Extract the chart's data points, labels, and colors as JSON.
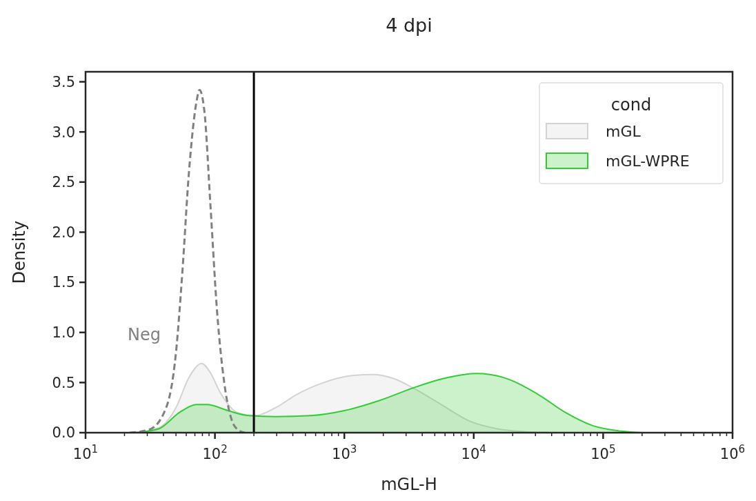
{
  "chart_data": {
    "type": "area",
    "title": "4 dpi",
    "xlabel": "mGL-H",
    "ylabel": "Density",
    "legend_title": "cond",
    "legend": "top right",
    "log": "x",
    "line_style": "solid",
    "xlim": [
      10,
      1000000
    ],
    "ylim": [
      0,
      3.6
    ],
    "xticks": [
      {
        "value": 10,
        "label": "10$^{1}$"
      },
      {
        "value": 20,
        "label": null
      },
      {
        "value": 30,
        "label": null
      },
      {
        "value": 40,
        "label": null
      },
      {
        "value": 50,
        "label": null
      },
      {
        "value": 60,
        "label": null
      },
      {
        "value": 70,
        "label": null
      },
      {
        "value": 80,
        "label": null
      },
      {
        "value": 90,
        "label": null
      },
      {
        "value": 100,
        "label": "10$^{2}$"
      },
      {
        "value": 200,
        "label": null
      },
      {
        "value": 300,
        "label": null
      },
      {
        "value": 400,
        "label": null
      },
      {
        "value": 500,
        "label": null
      },
      {
        "value": 600,
        "label": null
      },
      {
        "value": 700,
        "label": null
      },
      {
        "value": 800,
        "label": null
      },
      {
        "value": 900,
        "label": null
      },
      {
        "value": 1000,
        "label": "10$^{3}$"
      },
      {
        "value": 2000,
        "label": null
      },
      {
        "value": 3000,
        "label": null
      },
      {
        "value": 4000,
        "label": null
      },
      {
        "value": 5000,
        "label": null
      },
      {
        "value": 6000,
        "label": null
      },
      {
        "value": 7000,
        "label": null
      },
      {
        "value": 8000,
        "label": null
      },
      {
        "value": 9000,
        "label": null
      },
      {
        "value": 10000,
        "label": "10$^{4}$"
      },
      {
        "value": 20000,
        "label": null
      },
      {
        "value": 30000,
        "label": null
      },
      {
        "value": 40000,
        "label": null
      },
      {
        "value": 50000,
        "label": null
      },
      {
        "value": 60000,
        "label": null
      },
      {
        "value": 70000,
        "label": null
      },
      {
        "value": 80000,
        "label": null
      },
      {
        "value": 90000,
        "label": null
      },
      {
        "value": 100000,
        "label": "10$^{5}$"
      },
      {
        "value": 200000,
        "label": null
      },
      {
        "value": 300000,
        "label": null
      },
      {
        "value": 400000,
        "label": null
      },
      {
        "value": 500000,
        "label": null
      },
      {
        "value": 600000,
        "label": null
      },
      {
        "value": 700000,
        "label": null
      },
      {
        "value": 800000,
        "label": null
      },
      {
        "value": 900000,
        "label": null
      },
      {
        "value": 1000000,
        "label": "10$^{6}$"
      }
    ],
    "yticks": [
      {
        "value": 0,
        "label": "0.0"
      },
      {
        "value": 0.5,
        "label": "0.5"
      },
      {
        "value": 1,
        "label": "1.0"
      },
      {
        "value": 1.5,
        "label": "1.5"
      },
      {
        "value": 2,
        "label": "2.0"
      },
      {
        "value": 2.5,
        "label": "2.5"
      },
      {
        "value": 3,
        "label": "3.0"
      },
      {
        "value": 3.5,
        "label": "3.5"
      }
    ],
    "ref_lines": [
      {
        "axis": "x",
        "value": 200,
        "color": "#000000"
      }
    ],
    "series": [
      {
        "name": "mGL",
        "color": "#d3d3d3",
        "x": [
          24,
          37,
          50,
          63,
          79,
          92,
          110,
          150,
          205,
          295,
          427,
          692,
          1150,
          1660,
          2400,
          3470,
          5620,
          9120,
          15100,
          24500,
          39800
        ],
        "values": [
          0,
          0.05,
          0.25,
          0.55,
          0.69,
          0.6,
          0.4,
          0.2,
          0.17,
          0.25,
          0.38,
          0.5,
          0.57,
          0.58,
          0.54,
          0.44,
          0.28,
          0.12,
          0.04,
          0.01,
          0
        ]
      },
      {
        "name": "mGL-WPRE",
        "color": "#32cd32",
        "x": [
          24,
          37,
          53,
          72,
          87,
          126,
          182,
          295,
          550,
          1000,
          1860,
          3470,
          6310,
          10500,
          17000,
          31600,
          51300,
          83200,
          138000,
          200000
        ],
        "values": [
          0,
          0.04,
          0.2,
          0.28,
          0.28,
          0.22,
          0.17,
          0.16,
          0.17,
          0.22,
          0.32,
          0.45,
          0.55,
          0.59,
          0.55,
          0.38,
          0.2,
          0.07,
          0.015,
          0
        ]
      },
      {
        "name": "Neg",
        "type": "line",
        "line_style": "dashed",
        "color": "#808080",
        "x": [
          22,
          31,
          42,
          50,
          56,
          63,
          72,
          76,
          83,
          92,
          104,
          118,
          133,
          150,
          170
        ],
        "values": [
          0,
          0.03,
          0.25,
          0.8,
          1.6,
          2.6,
          3.3,
          3.42,
          3.2,
          2.3,
          1.2,
          0.5,
          0.15,
          0.03,
          0
        ]
      }
    ]
  }
}
